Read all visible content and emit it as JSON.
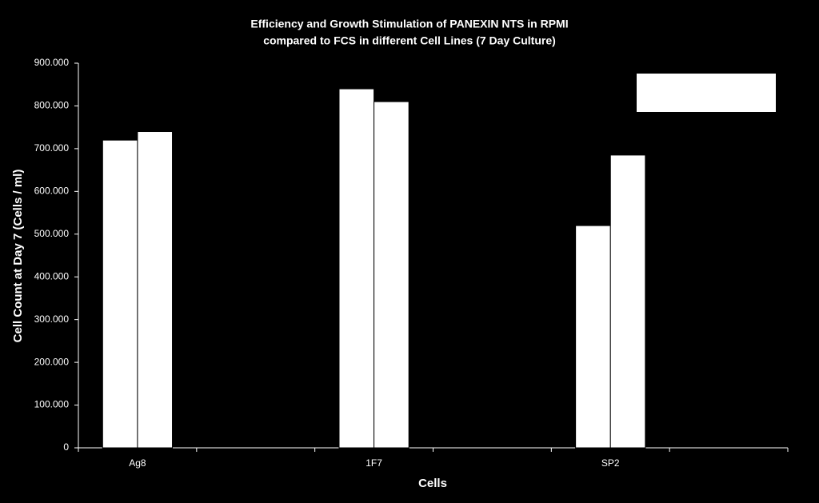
{
  "chart_data": {
    "type": "bar",
    "title": [
      "Efficiency and Growth Stimulation of PANEXIN NTS in RPMI",
      "compared to FCS in different Cell Lines (7 Day Culture)"
    ],
    "x_label": "Cells",
    "y_label": "Cell Count at Day 7 (Cells / ml)",
    "categories": [
      "Ag8",
      null,
      "1F7",
      null,
      "SP2",
      null
    ],
    "series": [
      {
        "color": "#ffffff",
        "values": [
          720000,
          null,
          840000,
          null,
          520000,
          null
        ]
      },
      {
        "color": "#ffffff",
        "values": [
          740000,
          null,
          810000,
          null,
          685000,
          null
        ]
      }
    ],
    "ylim": [
      0,
      900000
    ],
    "yticks": [
      0,
      {
        "value": 100000,
        "label": "100.000"
      },
      {
        "value": 200000,
        "label": "200.000"
      },
      {
        "value": 300000,
        "label": "300.000"
      },
      {
        "value": 400000,
        "label": "400.000"
      },
      {
        "value": 500000,
        "label": "500.000"
      },
      {
        "value": 600000,
        "label": "600.000"
      },
      {
        "value": 700000,
        "label": "700.000"
      },
      {
        "value": 800000,
        "label": "800.000"
      },
      {
        "value": 900000,
        "label": "900.000"
      }
    ],
    "grid": false
  }
}
